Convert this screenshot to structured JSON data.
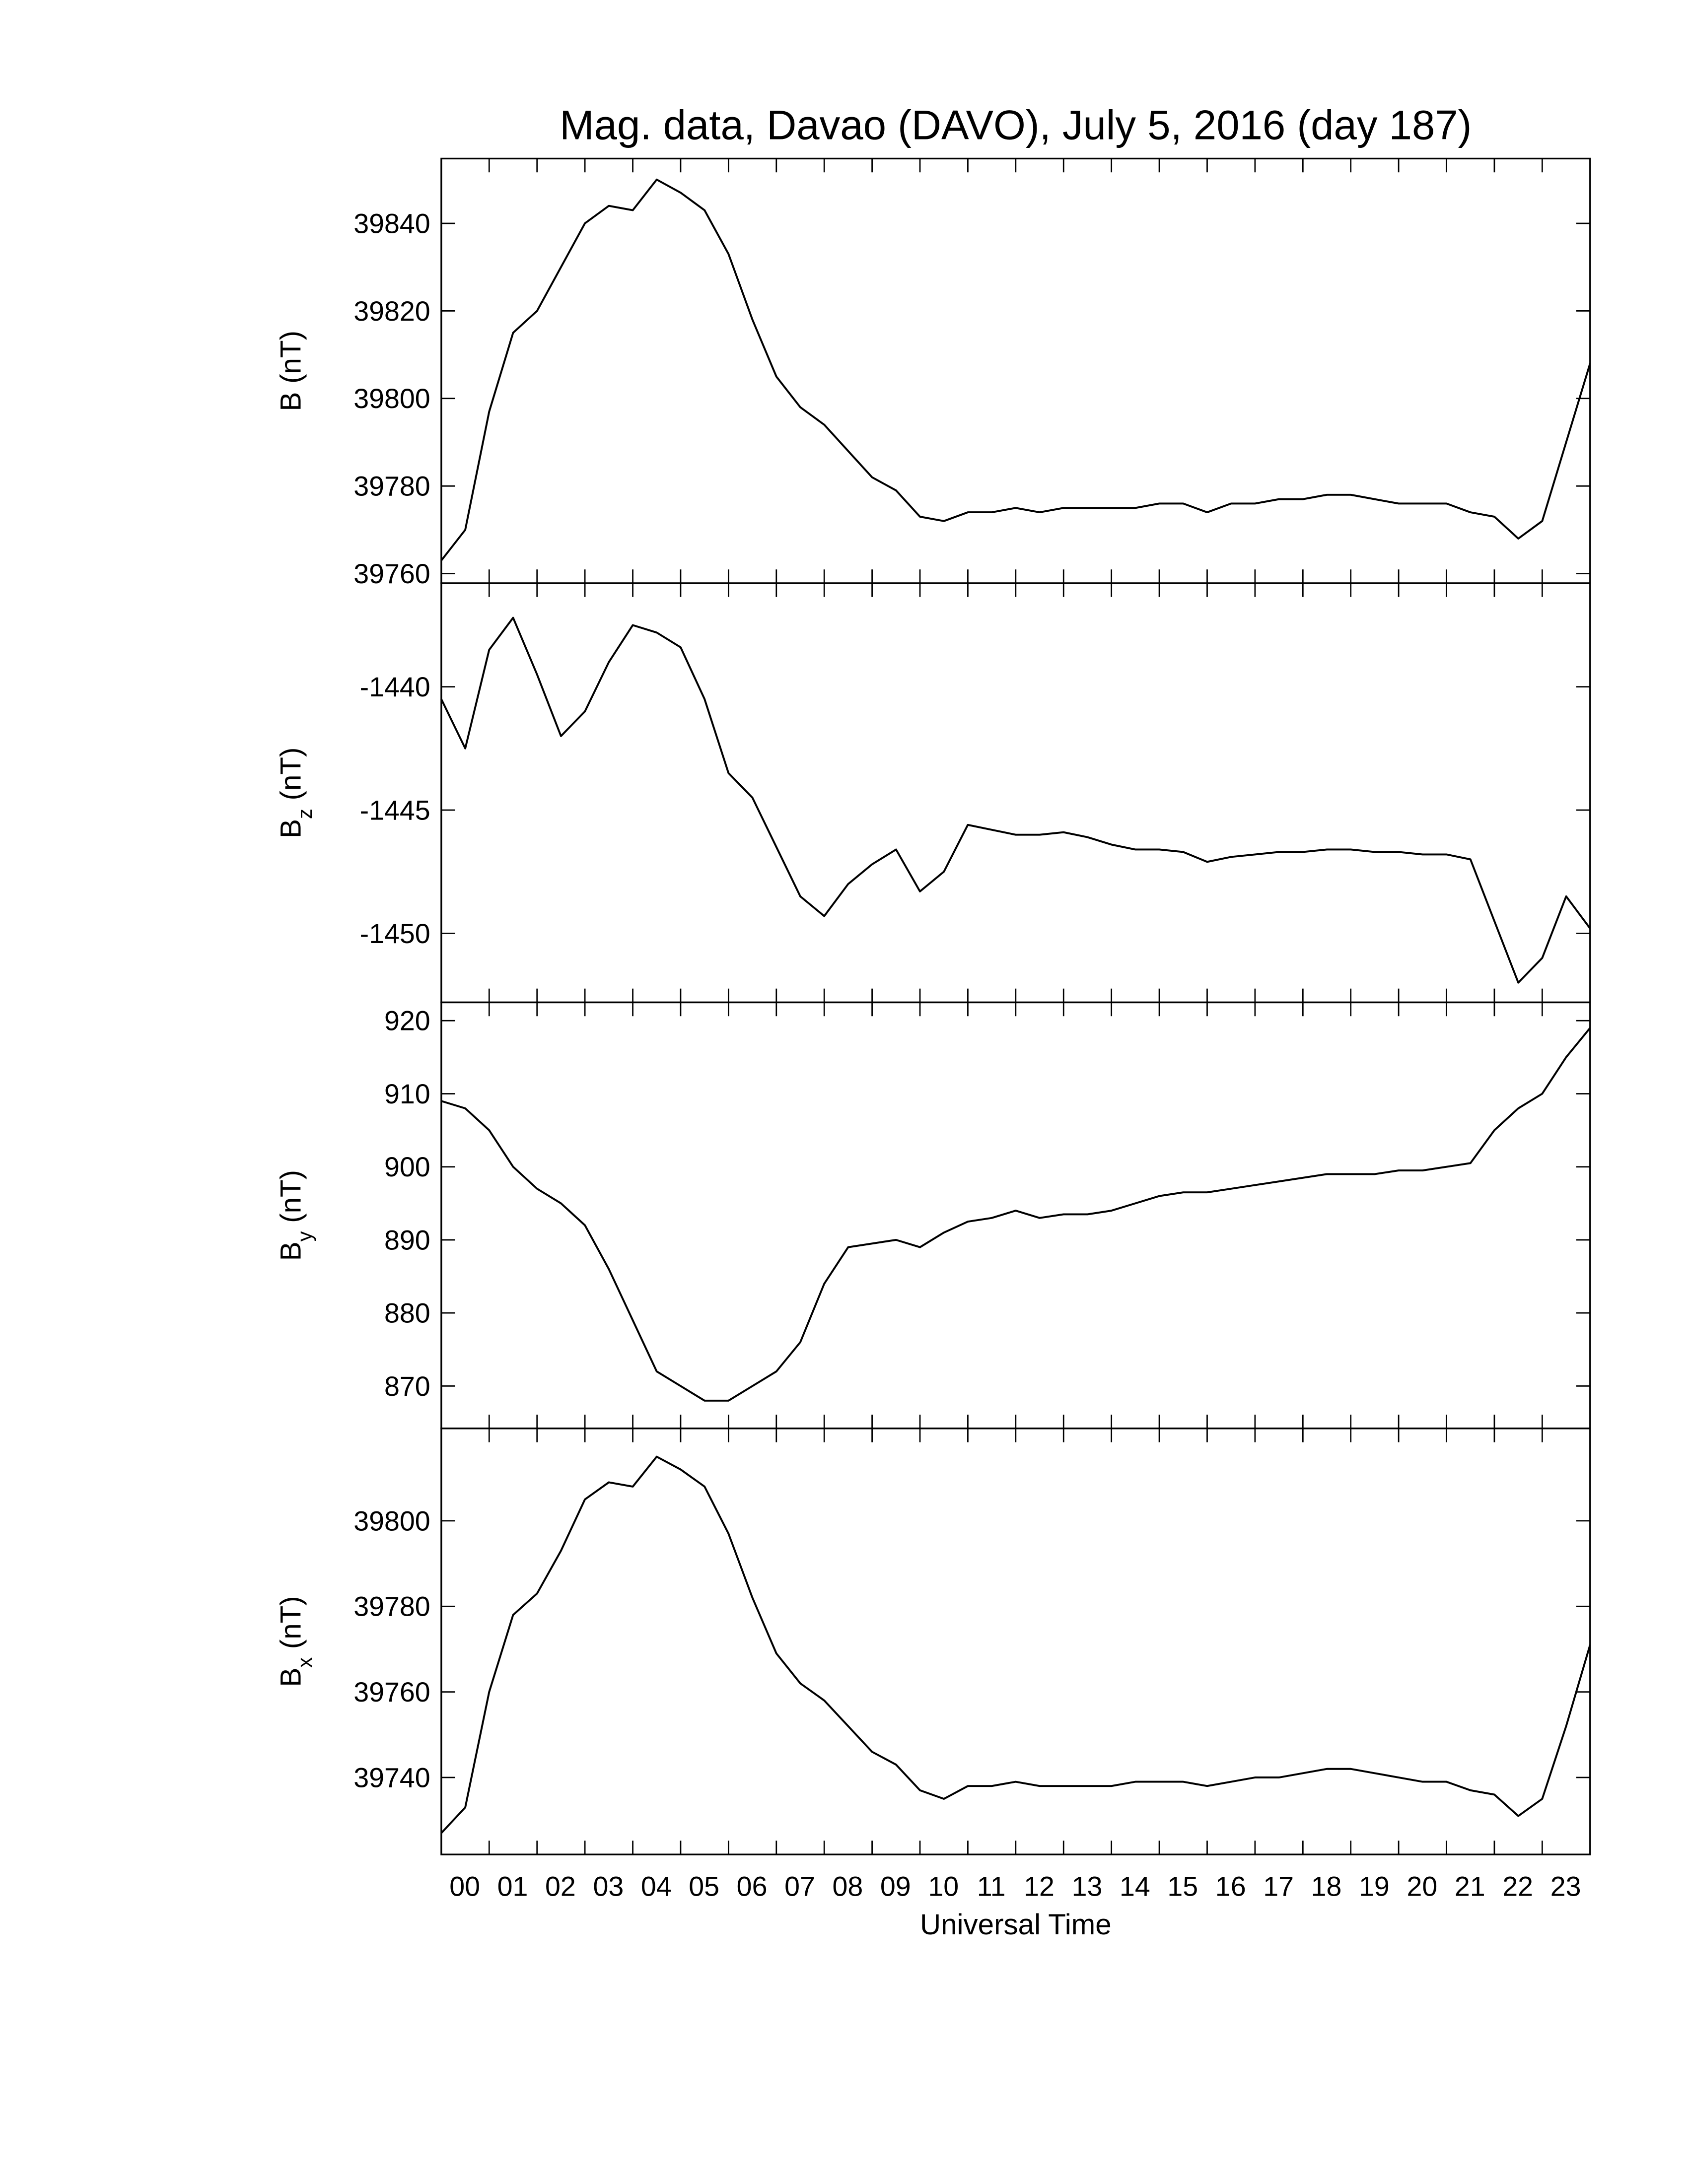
{
  "chart_data": [
    {
      "type": "line",
      "title": "Mag. data, Davao (DAVO), July 5, 2016 (day 187)",
      "ylabel": "B",
      "ylabel_unit": "(nT)",
      "color": "#000000",
      "xlim": [
        0,
        24
      ],
      "ylim": [
        39757.8,
        39854.8
      ],
      "yticks": [
        39760,
        39780,
        39800,
        39820,
        39840
      ],
      "x": [
        0,
        0.5,
        1,
        1.5,
        2,
        2.5,
        3,
        3.5,
        4,
        4.5,
        5,
        5.5,
        6,
        6.5,
        7,
        7.5,
        8,
        8.5,
        9,
        9.5,
        10,
        10.5,
        11,
        11.5,
        12,
        12.5,
        13,
        13.5,
        14,
        14.5,
        15,
        15.5,
        16,
        16.5,
        17,
        17.5,
        18,
        18.5,
        19,
        19.5,
        20,
        20.5,
        21,
        21.5,
        22,
        22.5,
        23,
        23.5,
        24
      ],
      "values": [
        39763,
        39770,
        39797,
        39815,
        39820,
        39830,
        39840,
        39844,
        39843,
        39850,
        39847,
        39843,
        39833,
        39818,
        39805,
        39798,
        39794,
        39788,
        39782,
        39779,
        39773,
        39772,
        39774,
        39774,
        39775,
        39774,
        39775,
        39775,
        39775,
        39775,
        39776,
        39776,
        39774,
        39776,
        39776,
        39777,
        39777,
        39778,
        39778,
        39777,
        39776,
        39776,
        39776,
        39774,
        39773,
        39768,
        39772,
        39790,
        39808
      ]
    },
    {
      "type": "line",
      "ylabel": "B",
      "ylabel_sub": "z",
      "ylabel_unit": "(nT)",
      "color": "#000000",
      "xlim": [
        0,
        24
      ],
      "ylim": [
        -1452.8,
        -1435.8
      ],
      "yticks": [
        -1450,
        -1445,
        -1440
      ],
      "x": [
        0,
        0.5,
        1,
        1.5,
        2,
        2.5,
        3,
        3.5,
        4,
        4.5,
        5,
        5.5,
        6,
        6.5,
        7,
        7.5,
        8,
        8.5,
        9,
        9.5,
        10,
        10.5,
        11,
        11.5,
        12,
        12.5,
        13,
        13.5,
        14,
        14.5,
        15,
        15.5,
        16,
        16.5,
        17,
        17.5,
        18,
        18.5,
        19,
        19.5,
        20,
        20.5,
        21,
        21.5,
        22,
        22.5,
        23,
        23.5,
        24
      ],
      "values": [
        -1440.5,
        -1442.5,
        -1438.5,
        -1437.2,
        -1439.5,
        -1442,
        -1441,
        -1439,
        -1437.5,
        -1437.8,
        -1438.4,
        -1440.5,
        -1443.5,
        -1444.5,
        -1446.5,
        -1448.5,
        -1449.3,
        -1448,
        -1447.2,
        -1446.6,
        -1448.3,
        -1447.5,
        -1445.6,
        -1445.8,
        -1446,
        -1446,
        -1445.9,
        -1446.1,
        -1446.4,
        -1446.6,
        -1446.6,
        -1446.7,
        -1447.1,
        -1446.9,
        -1446.8,
        -1446.7,
        -1446.7,
        -1446.6,
        -1446.6,
        -1446.7,
        -1446.7,
        -1446.8,
        -1446.8,
        -1447,
        -1449.5,
        -1452,
        -1451,
        -1448.5,
        -1449.8
      ]
    },
    {
      "type": "line",
      "ylabel": "B",
      "ylabel_sub": "y",
      "ylabel_unit": "(nT)",
      "color": "#000000",
      "xlim": [
        0,
        24
      ],
      "ylim": [
        864.2,
        922.5
      ],
      "yticks": [
        870,
        880,
        890,
        900,
        910,
        920
      ],
      "x": [
        0,
        0.5,
        1,
        1.5,
        2,
        2.5,
        3,
        3.5,
        4,
        4.5,
        5,
        5.5,
        6,
        6.5,
        7,
        7.5,
        8,
        8.5,
        9,
        9.5,
        10,
        10.5,
        11,
        11.5,
        12,
        12.5,
        13,
        13.5,
        14,
        14.5,
        15,
        15.5,
        16,
        16.5,
        17,
        17.5,
        18,
        18.5,
        19,
        19.5,
        20,
        20.5,
        21,
        21.5,
        22,
        22.5,
        23,
        23.5,
        24
      ],
      "values": [
        909,
        908,
        905,
        900,
        897,
        895,
        892,
        886,
        879,
        872,
        870,
        868,
        868,
        870,
        872,
        876,
        884,
        889,
        889.5,
        890,
        889,
        891,
        892.5,
        893,
        894,
        893,
        893.5,
        893.5,
        894,
        895,
        896,
        896.5,
        896.5,
        897,
        897.5,
        898,
        898.5,
        899,
        899,
        899,
        899.5,
        899.5,
        900,
        900.5,
        905,
        908,
        910,
        915,
        919
      ]
    },
    {
      "type": "line",
      "ylabel": "B",
      "ylabel_sub": "x",
      "ylabel_unit": "(nT)",
      "color": "#000000",
      "xlabel": "Universal Time",
      "xlim": [
        0,
        24
      ],
      "ylim": [
        39722,
        39821.6
      ],
      "yticks": [
        39740,
        39760,
        39780,
        39800
      ],
      "xticks": [
        {
          "value": 0,
          "label": "00"
        },
        {
          "value": 1,
          "label": "01"
        },
        {
          "value": 2,
          "label": "02"
        },
        {
          "value": 3,
          "label": "03"
        },
        {
          "value": 4,
          "label": "04"
        },
        {
          "value": 5,
          "label": "05"
        },
        {
          "value": 6,
          "label": "06"
        },
        {
          "value": 7,
          "label": "07"
        },
        {
          "value": 8,
          "label": "08"
        },
        {
          "value": 9,
          "label": "09"
        },
        {
          "value": 10,
          "label": "10"
        },
        {
          "value": 11,
          "label": "11"
        },
        {
          "value": 12,
          "label": "12"
        },
        {
          "value": 13,
          "label": "13"
        },
        {
          "value": 14,
          "label": "14"
        },
        {
          "value": 15,
          "label": "15"
        },
        {
          "value": 16,
          "label": "16"
        },
        {
          "value": 17,
          "label": "17"
        },
        {
          "value": 18,
          "label": "18"
        },
        {
          "value": 19,
          "label": "19"
        },
        {
          "value": 20,
          "label": "20"
        },
        {
          "value": 21,
          "label": "21"
        },
        {
          "value": 22,
          "label": "22"
        },
        {
          "value": 23,
          "label": "23"
        }
      ],
      "x": [
        0,
        0.5,
        1,
        1.5,
        2,
        2.5,
        3,
        3.5,
        4,
        4.5,
        5,
        5.5,
        6,
        6.5,
        7,
        7.5,
        8,
        8.5,
        9,
        9.5,
        10,
        10.5,
        11,
        11.5,
        12,
        12.5,
        13,
        13.5,
        14,
        14.5,
        15,
        15.5,
        16,
        16.5,
        17,
        17.5,
        18,
        18.5,
        19,
        19.5,
        20,
        20.5,
        21,
        21.5,
        22,
        22.5,
        23,
        23.5,
        24
      ],
      "values": [
        39727,
        39733,
        39760,
        39778,
        39783,
        39793,
        39805,
        39809,
        39808,
        39815,
        39812,
        39808,
        39797,
        39782,
        39769,
        39762,
        39758,
        39752,
        39746,
        39743,
        39737,
        39735,
        39738,
        39738,
        39739,
        39738,
        39738,
        39738,
        39738,
        39739,
        39739,
        39739,
        39738,
        39739,
        39740,
        39740,
        39741,
        39742,
        39742,
        39741,
        39740,
        39739,
        39739,
        39737,
        39736,
        39731,
        39735,
        39752,
        39771
      ]
    }
  ]
}
